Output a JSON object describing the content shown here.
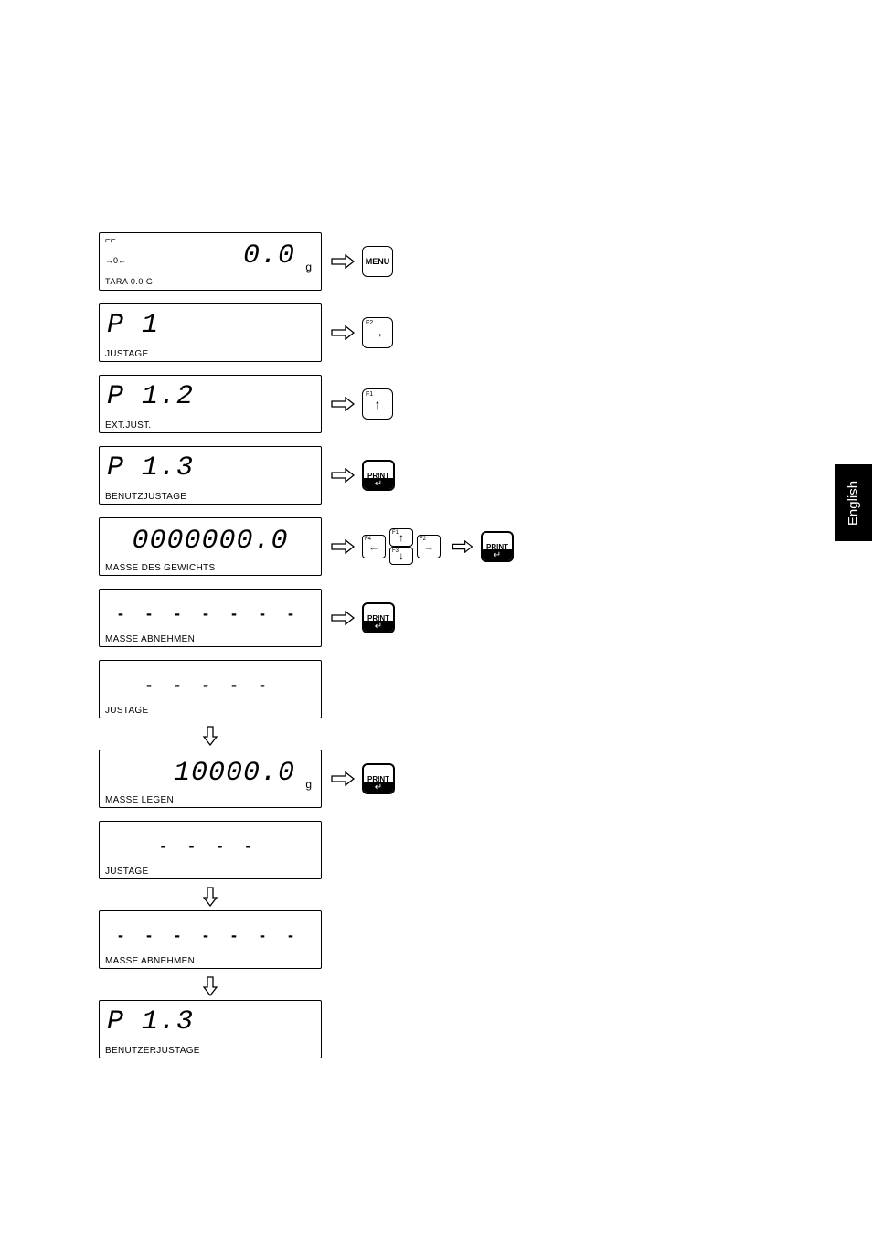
{
  "sidebar": {
    "label": "English"
  },
  "steps": [
    {
      "lcd": {
        "annot_top": "⌐⌐",
        "annot_mid": "→0←",
        "annot_bot": "TARA   0.0   G",
        "main": "0.0",
        "main_pos": "right",
        "unit": "g",
        "label": ""
      },
      "buttons": [
        {
          "type": "menu",
          "label": "MENU"
        }
      ],
      "flow_down": false
    },
    {
      "lcd": {
        "main": "P 1",
        "main_pos": "left",
        "label": "JUSTAGE"
      },
      "buttons": [
        {
          "type": "f",
          "corner": "F2",
          "glyph": "→"
        }
      ],
      "flow_down": false
    },
    {
      "lcd": {
        "main": "P 1.2",
        "main_pos": "left",
        "label": "EXT.JUST."
      },
      "buttons": [
        {
          "type": "f",
          "corner": "F1",
          "glyph": "↑"
        }
      ],
      "flow_down": false
    },
    {
      "lcd": {
        "main": "P 1.3",
        "main_pos": "left",
        "label": "BENUTZJUSTAGE"
      },
      "buttons": [
        {
          "type": "print",
          "label": "PRINT"
        }
      ],
      "flow_down": false
    },
    {
      "lcd": {
        "main": "0000000.0",
        "main_pos": "center",
        "label": "MASSE DES GEWICHTS"
      },
      "buttons": [
        {
          "type": "navpad"
        },
        {
          "type": "arrow"
        },
        {
          "type": "print",
          "label": "PRINT"
        }
      ],
      "flow_down": false
    },
    {
      "lcd": {
        "dashes": "- - - - - - -",
        "label": "MASSE ABNEHMEN"
      },
      "buttons": [
        {
          "type": "print",
          "label": "PRINT"
        }
      ],
      "flow_down": false
    },
    {
      "lcd": {
        "dashes": "-   -   -   -   -",
        "label": "JUSTAGE"
      },
      "buttons": [],
      "flow_down": true
    },
    {
      "lcd": {
        "main": "10000.0",
        "main_pos": "right",
        "unit": "g",
        "label": "MASSE LEGEN"
      },
      "buttons": [
        {
          "type": "print",
          "label": "PRINT"
        }
      ],
      "flow_down": false
    },
    {
      "lcd": {
        "dashes": "-    -    -    -",
        "label": "JUSTAGE"
      },
      "buttons": [],
      "flow_down": true
    },
    {
      "lcd": {
        "dashes": "- - - - - - -",
        "label": "MASSE ABNEHMEN"
      },
      "buttons": [],
      "flow_down": true
    },
    {
      "lcd": {
        "main": "P 1.3",
        "main_pos": "left",
        "label": "BENUTZERJUSTAGE"
      },
      "buttons": [],
      "flow_down": false
    }
  ],
  "navpad": {
    "left": {
      "corner": "F4",
      "glyph": "←"
    },
    "up": {
      "corner": "F1",
      "glyph": "↑"
    },
    "down": {
      "corner": "F3",
      "glyph": "↓"
    },
    "right": {
      "corner": "F2",
      "glyph": "→"
    }
  }
}
